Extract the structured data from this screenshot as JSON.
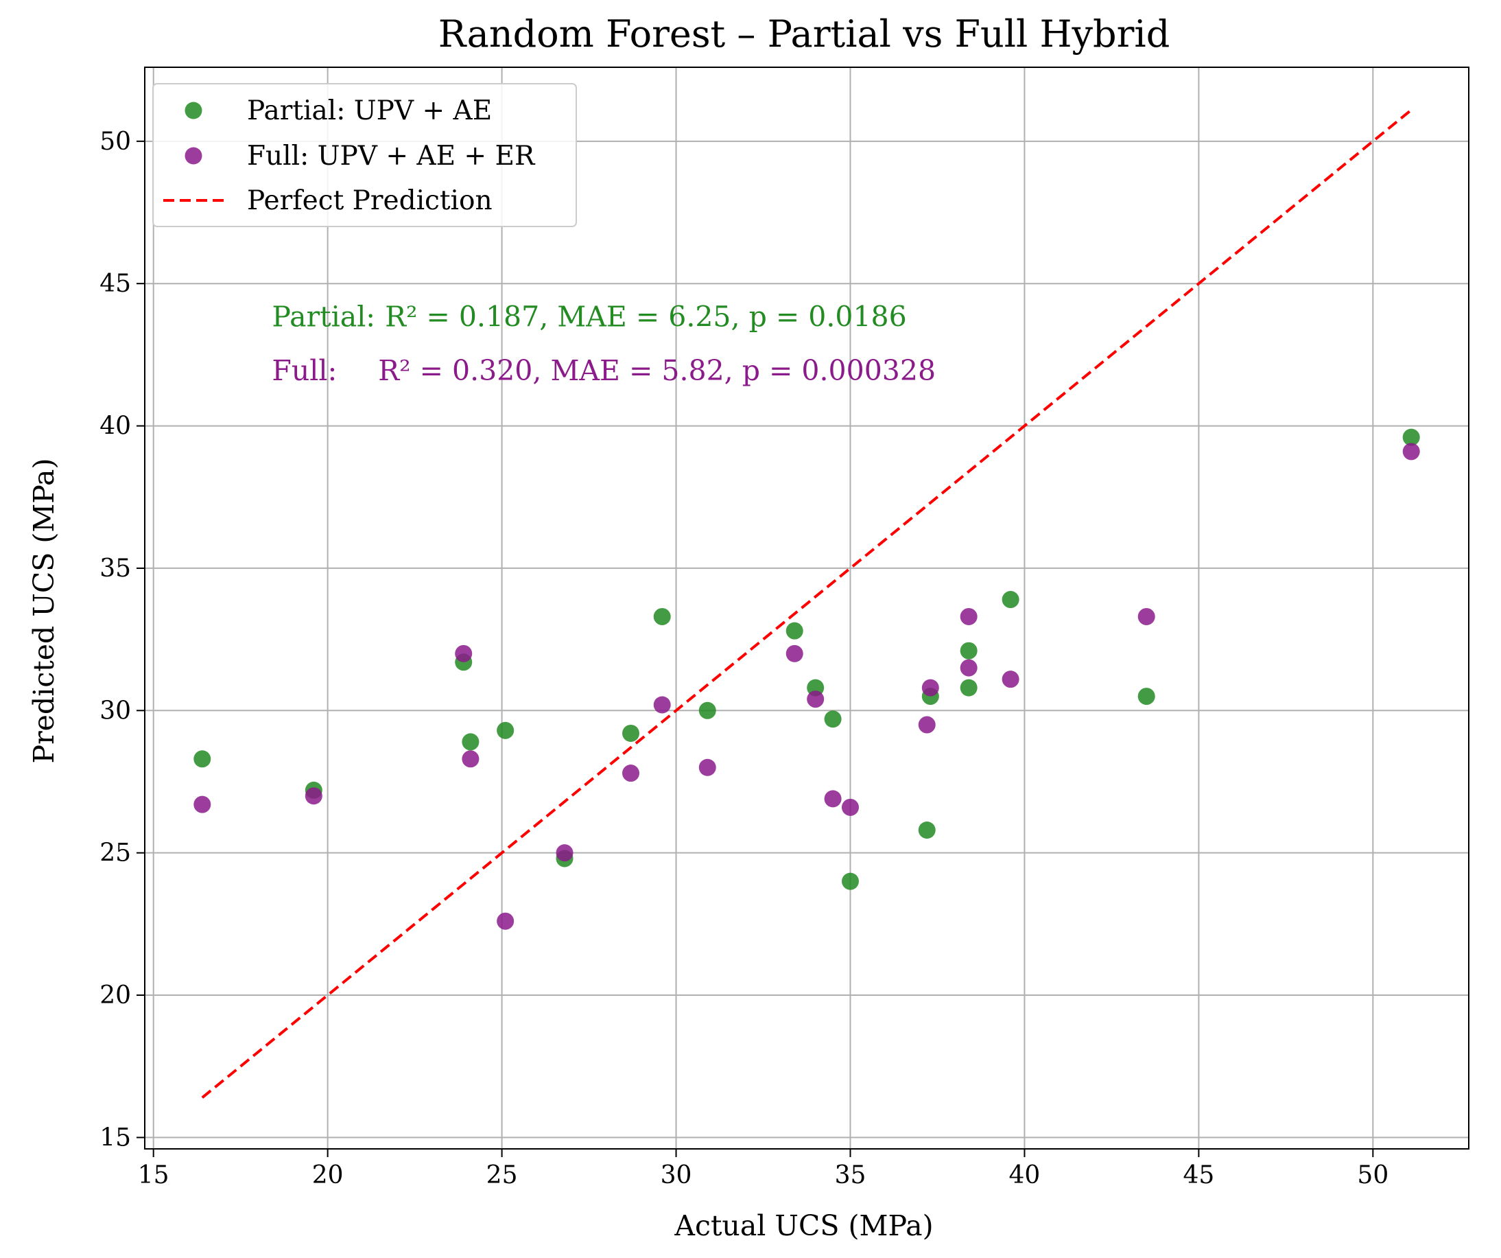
{
  "chart_data": {
    "type": "scatter",
    "title": "Random Forest – Partial vs Full Hybrid",
    "xlabel": "Actual UCS (MPa)",
    "ylabel": "Predicted UCS (MPa)",
    "xlim": [
      14.75,
      52.75
    ],
    "ylim": [
      14.6,
      52.6
    ],
    "xticks": [
      15,
      20,
      25,
      30,
      35,
      40,
      45,
      50
    ],
    "yticks": [
      15,
      20,
      25,
      30,
      35,
      40,
      45,
      50
    ],
    "grid": true,
    "legend_position": "top-left",
    "series": [
      {
        "name": "Partial: UPV + AE",
        "color": "#228b22",
        "points": [
          [
            16.4,
            28.3
          ],
          [
            19.6,
            27.2
          ],
          [
            23.9,
            31.7
          ],
          [
            24.1,
            28.9
          ],
          [
            25.1,
            29.3
          ],
          [
            26.8,
            24.8
          ],
          [
            28.7,
            29.2
          ],
          [
            29.6,
            33.3
          ],
          [
            30.9,
            30.0
          ],
          [
            33.4,
            32.8
          ],
          [
            34.0,
            30.8
          ],
          [
            34.5,
            29.7
          ],
          [
            35.0,
            24.0
          ],
          [
            37.2,
            25.8
          ],
          [
            37.3,
            30.5
          ],
          [
            38.4,
            32.1
          ],
          [
            38.4,
            30.8
          ],
          [
            39.6,
            33.9
          ],
          [
            43.5,
            30.5
          ],
          [
            51.1,
            39.6
          ]
        ]
      },
      {
        "name": "Full: UPV + AE + ER",
        "color": "#8b1a8b",
        "points": [
          [
            16.4,
            26.7
          ],
          [
            19.6,
            27.0
          ],
          [
            23.9,
            32.0
          ],
          [
            24.1,
            28.3
          ],
          [
            25.1,
            22.6
          ],
          [
            26.8,
            25.0
          ],
          [
            28.7,
            27.8
          ],
          [
            29.6,
            30.2
          ],
          [
            30.9,
            28.0
          ],
          [
            33.4,
            32.0
          ],
          [
            34.0,
            30.4
          ],
          [
            34.5,
            26.9
          ],
          [
            35.0,
            26.6
          ],
          [
            37.2,
            29.5
          ],
          [
            37.3,
            30.8
          ],
          [
            38.4,
            33.3
          ],
          [
            38.4,
            31.5
          ],
          [
            39.6,
            31.1
          ],
          [
            43.5,
            33.3
          ],
          [
            51.1,
            39.1
          ]
        ]
      }
    ],
    "reference_line": {
      "name": "Perfect Prediction",
      "color": "#ff0000",
      "from": [
        16.4,
        16.4
      ],
      "to": [
        51.1,
        51.1
      ]
    },
    "annotations": [
      {
        "label": "Partial:",
        "text": "R² = 0.187, MAE = 6.25, p = 0.0186",
        "color": "#228b22",
        "x": 18.4,
        "y": 43.5
      },
      {
        "label": "Full:",
        "text": "R² = 0.320, MAE = 5.82, p = 0.000328",
        "color": "#8b1a8b",
        "x": 18.4,
        "y": 41.6
      }
    ]
  }
}
